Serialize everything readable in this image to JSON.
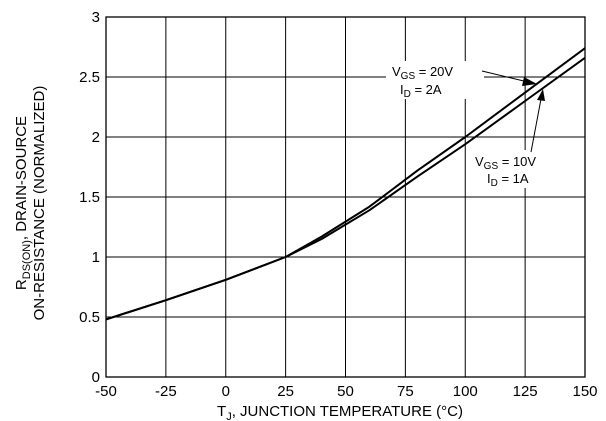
{
  "chart_data": {
    "type": "line",
    "title": "",
    "xlabel": {
      "pre": "T",
      "sub": "J",
      "post": ", JUNCTION TEMPERATURE (°C)"
    },
    "ylabel": {
      "line1": {
        "pre": "R",
        "sub": "DS(ON)",
        "post": ", DRAIN-SOURCE"
      },
      "line2": "ON-RESISTANCE (NORMALIZED)"
    },
    "xlim": [
      -50,
      150
    ],
    "ylim": [
      0,
      3
    ],
    "xticks": [
      "-50",
      "-25",
      "0",
      "25",
      "50",
      "75",
      "100",
      "125",
      "150"
    ],
    "yticks": [
      "0",
      "0.5",
      "1",
      "1.5",
      "2",
      "2.5",
      "3"
    ],
    "grid": true,
    "series": [
      {
        "name": {
          "a_pre": "V",
          "a_sub": "GS",
          "a_post": " = 20V",
          "b_pre": "I",
          "b_sub": "D",
          "b_post": " = 2A"
        },
        "x": [
          -50,
          -25,
          0,
          25,
          40,
          60,
          80,
          100,
          125,
          150
        ],
        "y": [
          0.48,
          0.64,
          0.81,
          1.0,
          1.17,
          1.42,
          1.72,
          2.0,
          2.37,
          2.74
        ]
      },
      {
        "name": {
          "a_pre": "V",
          "a_sub": "GS",
          "a_post": " = 10V",
          "b_pre": "I",
          "b_sub": "D",
          "b_post": " = 1A"
        },
        "x": [
          -50,
          -25,
          0,
          25,
          40,
          60,
          80,
          100,
          125,
          150
        ],
        "y": [
          0.48,
          0.64,
          0.81,
          1.0,
          1.15,
          1.39,
          1.67,
          1.94,
          2.3,
          2.66
        ]
      }
    ]
  }
}
